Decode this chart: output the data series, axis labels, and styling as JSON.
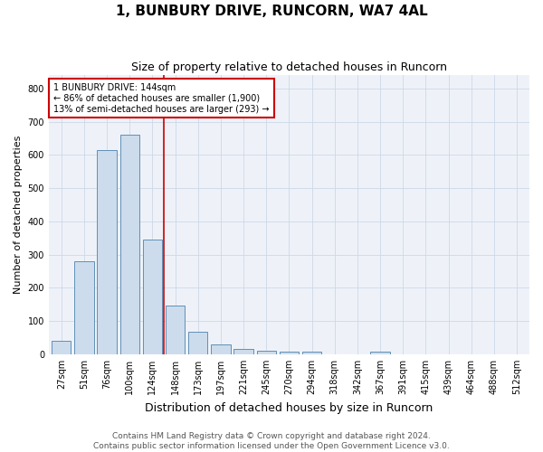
{
  "title": "1, BUNBURY DRIVE, RUNCORN, WA7 4AL",
  "subtitle": "Size of property relative to detached houses in Runcorn",
  "xlabel": "Distribution of detached houses by size in Runcorn",
  "ylabel": "Number of detached properties",
  "categories": [
    "27sqm",
    "51sqm",
    "76sqm",
    "100sqm",
    "124sqm",
    "148sqm",
    "173sqm",
    "197sqm",
    "221sqm",
    "245sqm",
    "270sqm",
    "294sqm",
    "318sqm",
    "342sqm",
    "367sqm",
    "391sqm",
    "415sqm",
    "439sqm",
    "464sqm",
    "488sqm",
    "512sqm"
  ],
  "values": [
    40,
    280,
    615,
    660,
    345,
    148,
    67,
    30,
    17,
    12,
    8,
    7,
    0,
    0,
    7,
    0,
    0,
    0,
    0,
    0,
    0
  ],
  "bar_color": "#ccdcec",
  "bar_edge_color": "#6090b8",
  "red_line_x": 5,
  "red_line_color": "#cc0000",
  "annotation_text": "1 BUNBURY DRIVE: 144sqm\n← 86% of detached houses are smaller (1,900)\n13% of semi-detached houses are larger (293) →",
  "annotation_box_color": "#ffffff",
  "annotation_box_edge": "#cc0000",
  "ylim": [
    0,
    840
  ],
  "yticks": [
    0,
    100,
    200,
    300,
    400,
    500,
    600,
    700,
    800
  ],
  "footer_text": "Contains HM Land Registry data © Crown copyright and database right 2024.\nContains public sector information licensed under the Open Government Licence v3.0.",
  "title_fontsize": 11,
  "subtitle_fontsize": 9,
  "xlabel_fontsize": 9,
  "ylabel_fontsize": 8,
  "tick_fontsize": 7,
  "annotation_fontsize": 7,
  "footer_fontsize": 6.5,
  "grid_color": "#ccd8e8",
  "bg_color": "#eef2f8"
}
